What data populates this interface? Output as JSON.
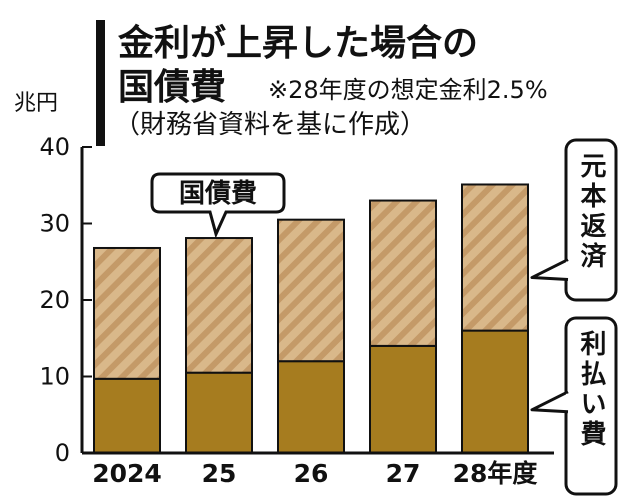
{
  "chart_data": {
    "type": "bar",
    "stacked": true,
    "title_line1": "金利が上昇した場合の",
    "title_line2": "国債費",
    "title_note": "※28年度の想定金利2.5%",
    "source": "（財務省資料を基に作成）",
    "ylabel": "兆円",
    "ylim": [
      0,
      40
    ],
    "yticks": [
      "0",
      "10",
      "20",
      "30",
      "40"
    ],
    "categories": [
      "2024",
      "25",
      "26",
      "27",
      "28年度"
    ],
    "series": [
      {
        "name": "利払い費",
        "values": [
          9.7,
          10.5,
          12.0,
          14.0,
          16.0
        ],
        "color": "#a67c1f"
      },
      {
        "name": "元本返済",
        "values": [
          17.1,
          17.6,
          18.5,
          19.0,
          19.1
        ],
        "color": "#d9b88a",
        "stripe_color": "#c49a68"
      }
    ],
    "bar_callout": "国債費",
    "bar_callout_category": "25",
    "grid": false
  }
}
